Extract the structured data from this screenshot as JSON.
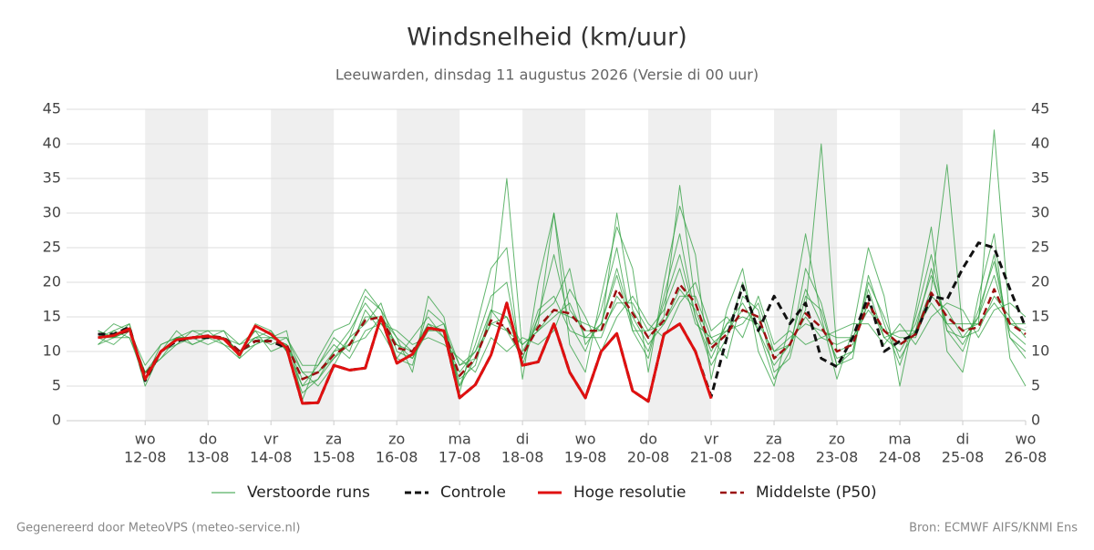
{
  "chart_data": {
    "type": "line",
    "title": "Windsnelheid (km/uur)",
    "subtitle": "Leeuwarden, dinsdag 11 augustus 2026 (Versie di 00 uur)",
    "footer_left": "Gegenereerd door MeteoVPS (meteo-service.nl)",
    "footer_right": "Bron: ECMWF AIFS/KNMI Ens",
    "x": [
      "2026-08-11T06:00",
      "2026-08-11T12:00",
      "2026-08-11T18:00",
      "2026-08-12T00:00",
      "2026-08-12T06:00",
      "2026-08-12T12:00",
      "2026-08-12T18:00",
      "2026-08-13T00:00",
      "2026-08-13T06:00",
      "2026-08-13T12:00",
      "2026-08-13T18:00",
      "2026-08-14T00:00",
      "2026-08-14T06:00",
      "2026-08-14T12:00",
      "2026-08-14T18:00",
      "2026-08-15T00:00",
      "2026-08-15T06:00",
      "2026-08-15T12:00",
      "2026-08-15T18:00",
      "2026-08-16T00:00",
      "2026-08-16T06:00",
      "2026-08-16T12:00",
      "2026-08-16T18:00",
      "2026-08-17T00:00",
      "2026-08-17T06:00",
      "2026-08-17T12:00",
      "2026-08-17T18:00",
      "2026-08-18T00:00",
      "2026-08-18T06:00",
      "2026-08-18T12:00",
      "2026-08-18T18:00",
      "2026-08-19T00:00",
      "2026-08-19T06:00",
      "2026-08-19T12:00",
      "2026-08-19T18:00",
      "2026-08-20T00:00",
      "2026-08-20T06:00",
      "2026-08-20T12:00",
      "2026-08-20T18:00",
      "2026-08-21T00:00",
      "2026-08-21T06:00",
      "2026-08-21T12:00",
      "2026-08-21T18:00",
      "2026-08-22T00:00",
      "2026-08-22T06:00",
      "2026-08-22T12:00",
      "2026-08-22T18:00",
      "2026-08-23T00:00",
      "2026-08-23T06:00",
      "2026-08-23T12:00",
      "2026-08-23T18:00",
      "2026-08-24T00:00",
      "2026-08-24T06:00",
      "2026-08-24T12:00",
      "2026-08-24T18:00",
      "2026-08-25T00:00",
      "2026-08-25T06:00",
      "2026-08-25T12:00",
      "2026-08-25T18:00",
      "2026-08-26T00:00"
    ],
    "xlim": [
      "2026-08-10T18:00",
      "2026-08-26T00:00"
    ],
    "xticks": [
      {
        "value": "2026-08-12T00:00",
        "weekday": "wo",
        "date": "12-08"
      },
      {
        "value": "2026-08-13T00:00",
        "weekday": "do",
        "date": "13-08"
      },
      {
        "value": "2026-08-14T00:00",
        "weekday": "vr",
        "date": "14-08"
      },
      {
        "value": "2026-08-15T00:00",
        "weekday": "za",
        "date": "15-08"
      },
      {
        "value": "2026-08-16T00:00",
        "weekday": "zo",
        "date": "16-08"
      },
      {
        "value": "2026-08-17T00:00",
        "weekday": "ma",
        "date": "17-08"
      },
      {
        "value": "2026-08-18T00:00",
        "weekday": "di",
        "date": "18-08"
      },
      {
        "value": "2026-08-19T00:00",
        "weekday": "wo",
        "date": "19-08"
      },
      {
        "value": "2026-08-20T00:00",
        "weekday": "do",
        "date": "20-08"
      },
      {
        "value": "2026-08-21T00:00",
        "weekday": "vr",
        "date": "21-08"
      },
      {
        "value": "2026-08-22T00:00",
        "weekday": "za",
        "date": "22-08"
      },
      {
        "value": "2026-08-23T00:00",
        "weekday": "zo",
        "date": "23-08"
      },
      {
        "value": "2026-08-24T00:00",
        "weekday": "ma",
        "date": "24-08"
      },
      {
        "value": "2026-08-25T00:00",
        "weekday": "di",
        "date": "25-08"
      },
      {
        "value": "2026-08-26T00:00",
        "weekday": "wo",
        "date": "26-08"
      }
    ],
    "ylim": [
      0,
      45
    ],
    "yticks": [
      0,
      5,
      10,
      15,
      20,
      25,
      30,
      35,
      40,
      45
    ],
    "grid": true,
    "ensemble": {
      "name": "Verstoorde runs",
      "color": "#2e9e3e",
      "runs": [
        [
          13,
          12,
          14,
          6,
          11,
          12,
          13,
          12,
          11,
          9,
          14,
          13,
          10,
          4,
          6,
          9,
          12,
          18,
          16,
          9,
          8,
          16,
          14,
          5,
          11,
          18,
          20,
          8,
          15,
          24,
          14,
          10,
          16,
          25,
          13,
          9,
          18,
          27,
          15,
          8,
          12,
          20,
          13,
          6,
          10,
          22,
          17,
          8,
          9,
          21,
          14,
          8,
          15,
          24,
          13,
          10,
          16,
          23,
          12,
          9
        ],
        [
          11,
          13,
          12,
          7,
          9,
          11,
          12,
          13,
          13,
          11,
          12,
          11,
          12,
          8,
          8,
          11,
          9,
          13,
          14,
          13,
          11,
          12,
          11,
          9,
          7,
          12,
          10,
          12,
          11,
          13,
          19,
          15,
          10,
          15,
          18,
          14,
          12,
          17,
          20,
          13,
          15,
          12,
          18,
          11,
          13,
          11,
          12,
          13,
          14,
          14,
          11,
          14,
          11,
          15,
          17,
          16,
          12,
          16,
          17,
          15
        ],
        [
          12,
          11,
          13,
          5,
          10,
          13,
          11,
          12,
          12,
          10,
          11,
          12,
          13,
          3,
          9,
          13,
          14,
          19,
          16,
          12,
          7,
          18,
          15,
          4,
          13,
          22,
          25,
          6,
          20,
          30,
          11,
          7,
          18,
          28,
          22,
          7,
          20,
          31,
          24,
          6,
          16,
          22,
          10,
          5,
          14,
          27,
          15,
          6,
          13,
          25,
          18,
          5,
          16,
          28,
          10,
          7,
          18,
          27,
          9,
          5
        ],
        [
          12,
          14,
          13,
          8,
          11,
          12,
          12,
          11,
          12,
          11,
          13,
          10,
          11,
          7,
          5,
          8,
          12,
          14,
          17,
          10,
          9,
          13,
          13,
          8,
          10,
          14,
          13,
          11,
          13,
          15,
          17,
          12,
          12,
          18,
          15,
          11,
          14,
          19,
          16,
          10,
          14,
          15,
          14,
          10,
          12,
          14,
          13,
          12,
          12,
          16,
          13,
          12,
          12,
          18,
          16,
          12,
          13,
          18,
          15,
          12
        ],
        [
          13,
          12,
          12,
          6,
          10,
          11,
          13,
          13,
          11,
          10,
          12,
          13,
          10,
          5,
          8,
          12,
          10,
          16,
          13,
          9,
          12,
          15,
          12,
          6,
          8,
          16,
          15,
          9,
          15,
          17,
          22,
          11,
          14,
          21,
          13,
          13,
          16,
          22,
          14,
          12,
          9,
          18,
          16,
          7,
          9,
          18,
          16,
          8,
          10,
          19,
          12,
          10,
          14,
          21,
          14,
          11,
          15,
          21,
          13,
          11
        ],
        [
          11,
          12,
          13,
          7,
          9,
          12,
          12,
          12,
          13,
          9,
          11,
          12,
          12,
          7,
          7,
          9,
          11,
          12,
          15,
          12,
          10,
          13,
          14,
          8,
          9,
          14,
          15,
          11,
          13,
          16,
          15,
          14,
          13,
          17,
          17,
          13,
          14,
          18,
          18,
          12,
          13,
          14,
          17,
          10,
          11,
          15,
          12,
          11,
          12,
          17,
          12,
          13,
          13,
          17,
          14,
          14,
          14,
          17,
          14,
          14
        ],
        [
          12,
          13,
          14,
          6,
          10,
          12,
          11,
          12,
          12,
          10,
          13,
          12,
          11,
          5,
          6,
          10,
          13,
          17,
          14,
          11,
          9,
          14,
          12,
          7,
          10,
          16,
          13,
          9,
          16,
          18,
          13,
          12,
          14,
          22,
          14,
          10,
          17,
          24,
          15,
          9,
          14,
          17,
          13,
          8,
          11,
          19,
          14,
          9,
          10,
          20,
          15,
          9,
          13,
          22,
          13,
          12,
          15,
          24,
          12,
          10
        ],
        [
          12,
          12,
          13,
          7,
          10,
          12,
          12,
          12,
          12,
          10,
          12,
          12,
          11,
          6,
          7,
          10,
          11,
          15,
          15,
          11,
          10,
          14,
          13,
          5,
          9,
          15,
          35,
          10,
          14,
          30,
          16,
          13,
          13,
          30,
          16,
          12,
          15,
          34,
          17,
          11,
          13,
          16,
          15,
          9,
          11,
          16,
          40,
          10,
          11,
          17,
          13,
          11,
          13,
          19,
          37,
          13,
          14,
          42,
          14,
          13
        ]
      ]
    },
    "series": [
      {
        "name": "Controle",
        "color": "#111111",
        "dash": true,
        "width": 3,
        "values": [
          12.5,
          12.5,
          13.5,
          5.8,
          10,
          11.5,
          12,
          12,
          12,
          10,
          11.5,
          11.5,
          10.5,
          2.5,
          2.6,
          8,
          7.3,
          7.6,
          15,
          8.3,
          9.6,
          13.4,
          13,
          3.3,
          5.2,
          9.5,
          17,
          8,
          8.5,
          14,
          7,
          3.3,
          10,
          12.6,
          4.3,
          2.8,
          12.5,
          14,
          10,
          3.5,
          12,
          19.5,
          13,
          18,
          14,
          17,
          9,
          7.8,
          12,
          18,
          10,
          11.5,
          12.5,
          18,
          17.5,
          22,
          25.7,
          25,
          19,
          13.5
        ]
      },
      {
        "name": "Hoge resolutie",
        "color": "#e01010",
        "dash": false,
        "width": 3,
        "values": [
          12,
          12.3,
          13.3,
          6,
          10,
          11.7,
          12,
          12.2,
          11.8,
          9.5,
          13.7,
          12.5,
          10.5,
          2.5,
          2.6,
          8,
          7.3,
          7.6,
          15,
          8.3,
          9.6,
          13.4,
          13,
          3.3,
          5.2,
          9.5,
          17,
          8,
          8.5,
          14,
          7,
          3.3,
          10,
          12.6,
          4.3,
          2.8,
          12.5,
          14,
          10,
          3.2,
          null,
          null,
          null,
          null,
          null,
          null,
          null,
          null,
          null,
          null,
          null,
          null,
          null,
          null,
          null,
          null,
          null,
          null,
          null,
          null
        ]
      },
      {
        "name": "Middelste (P50)",
        "color": "#9b1010",
        "dash": true,
        "width": 2.5,
        "values": [
          12,
          12.3,
          13,
          6.5,
          10,
          11.7,
          12,
          12.3,
          12,
          10,
          11.5,
          11.5,
          11,
          6,
          7,
          9.5,
          11,
          14.5,
          15,
          10.5,
          10,
          13.5,
          13,
          6.5,
          9,
          14.5,
          13.5,
          9.5,
          13.5,
          16,
          15.5,
          13,
          13,
          19,
          15.5,
          12,
          14.5,
          19.7,
          17,
          10.5,
          12.5,
          16,
          15,
          9,
          11,
          15.5,
          13.5,
          10,
          11,
          17,
          13,
          11,
          12.5,
          18.5,
          15,
          13,
          13.5,
          19,
          14,
          12.5
        ]
      }
    ]
  }
}
